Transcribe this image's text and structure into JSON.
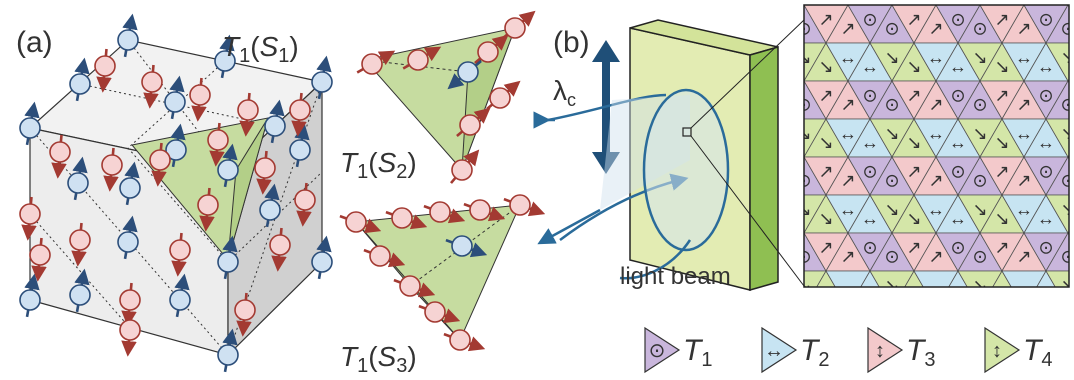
{
  "panels": {
    "a": {
      "label": "(a)",
      "cube_title": "T1(S1)",
      "tet2_title": "T1(S2)",
      "tet3_title": "T1(S3)"
    },
    "b": {
      "label": "(b)",
      "lambda": "λc",
      "beam_label": "light beam"
    }
  },
  "symbols": {
    "T1": "T1",
    "T2": "T2",
    "T3": "T3",
    "T4": "T4",
    "dot": "⊙",
    "horizontal": "↔",
    "diagonal_a": "↗",
    "diagonal_b": "↘"
  },
  "legend": [
    {
      "sub": "1",
      "symbol": "⊙"
    },
    {
      "sub": "2",
      "symbol": "↔"
    },
    {
      "sub": "3",
      "symbol": "↕"
    },
    {
      "sub": "4",
      "symbol": "↕"
    }
  ],
  "colors": {
    "T1": "#c9b6dc",
    "T2": "#c7e4f2",
    "T3": "#f3c9cb",
    "T4": "#d4e6a8",
    "blue_spin": "#cfe1f2",
    "blue_stroke": "#2c4e7a",
    "red_spin": "#f6d3d3",
    "red_stroke": "#a33a32",
    "green_face": "#c6dca0",
    "beam": "#2a6b9a",
    "dark_arrow": "#1f4f78"
  }
}
